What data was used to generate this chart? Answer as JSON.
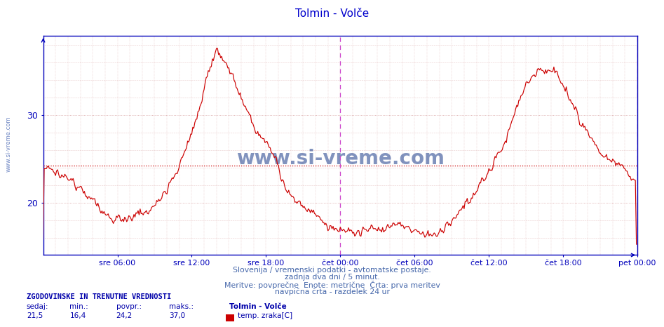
{
  "title": "Tolmin - Volče",
  "title_color": "#0000cc",
  "bg_color": "#ffffff",
  "plot_bg_color": "#ffffff",
  "line_color": "#cc0000",
  "axis_color": "#0000bb",
  "grid_color": "#cc8888",
  "avg_line_color": "#cc0000",
  "avg_value": 24.2,
  "ylim_min": 14,
  "ylim_max": 39,
  "yticks": [
    20,
    30
  ],
  "x_tick_labels": [
    "sre 06:00",
    "sre 12:00",
    "sre 18:00",
    "čet 00:00",
    "čet 06:00",
    "čet 12:00",
    "čet 18:00",
    "pet 00:00"
  ],
  "x_tick_positions": [
    72,
    144,
    216,
    288,
    360,
    432,
    504,
    576
  ],
  "total_points": 576,
  "vline_positions": [
    288,
    576
  ],
  "vline_color": "#cc44cc",
  "footer_line1": "Slovenija / vremenski podatki - avtomatske postaje.",
  "footer_line2": "zadnja dva dni / 5 minut.",
  "footer_line3": "Meritve: povprečne  Enote: metrične  Črta: prva meritev",
  "footer_line4": "navpična črta - razdelek 24 ur",
  "footer_color": "#4466aa",
  "stats_label": "ZGODOVINSKE IN TRENUTNE VREDNOSTI",
  "stats_color": "#0000aa",
  "col_headers": [
    "sedaj:",
    "min.:",
    "povpr.:",
    "maks.:"
  ],
  "col_values": [
    "21,5",
    "16,4",
    "24,2",
    "37,0"
  ],
  "legend_title": "Tolmin - Volče",
  "legend_label": "temp. zraka[C]",
  "legend_color": "#cc0000",
  "watermark_text": "www.si-vreme.com",
  "watermark_color": "#1a3a8a",
  "sivreme_vertical_color": "#3355aa"
}
